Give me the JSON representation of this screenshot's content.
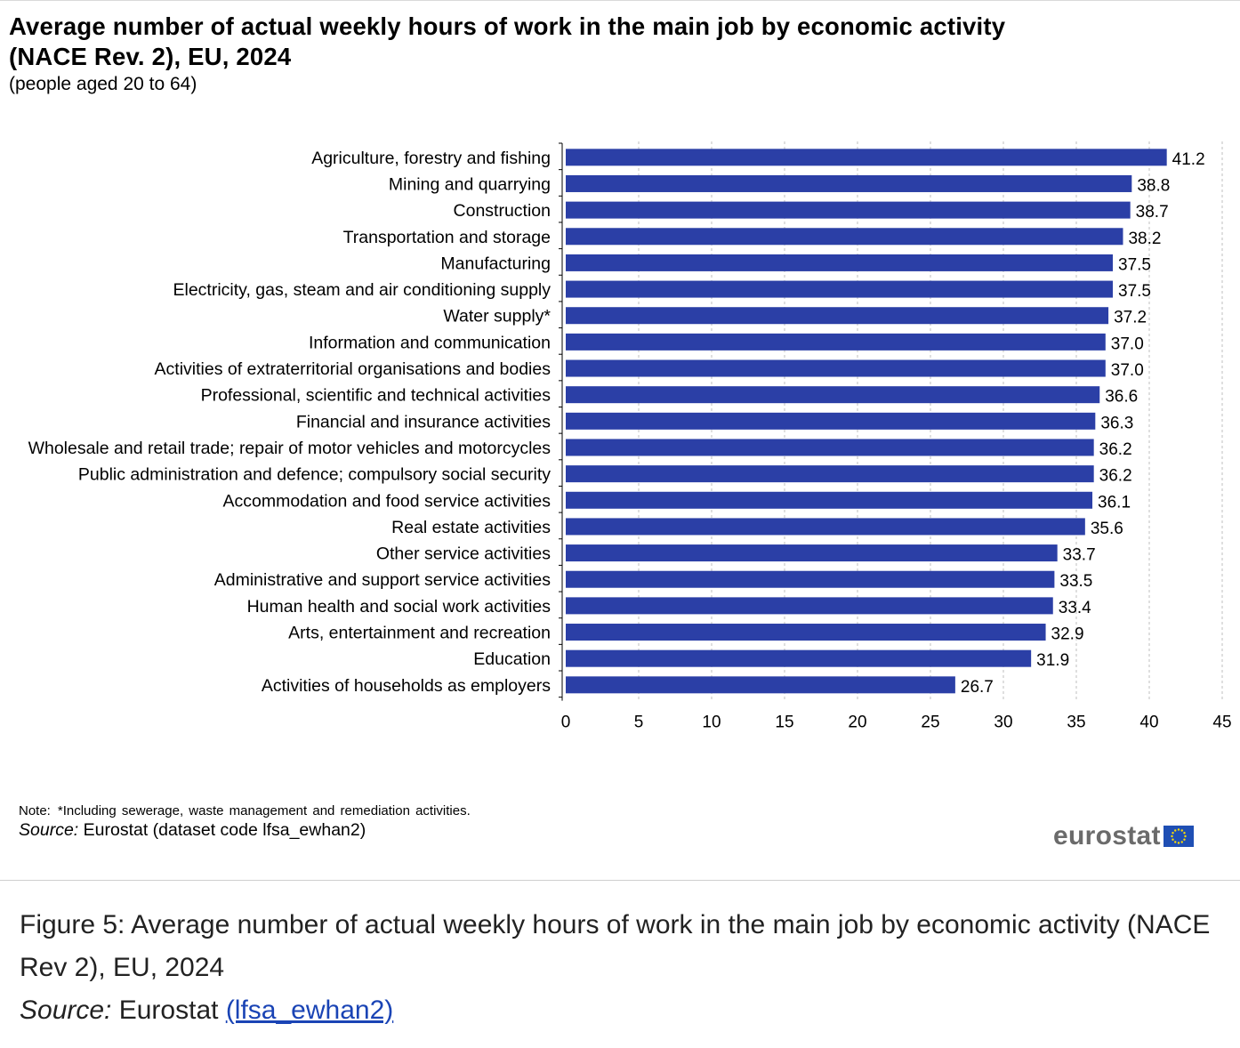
{
  "figure": {
    "title": "Average number of actual weekly hours of work in the main job by economic activity (NACE Rev. 2), EU, 2024",
    "subtitle": "(people aged 20 to 64)",
    "note_label": "Note:",
    "note_text": "*Including sewerage, waste management and remediation activities.",
    "source_label": "Source:",
    "source_text": "Eurostat (dataset code lfsa_ewhan2)",
    "logo_text": "eurostat"
  },
  "caption": {
    "title": "Figure 5: Average number of actual weekly hours of work in the main job by economic activity (NACE Rev 2), EU, 2024",
    "source_label": "Source:",
    "source_text": "Eurostat",
    "link_text": "(lfsa_ewhan2)"
  },
  "colors": {
    "bar": "#2b3fa6",
    "grid": "#bfbfbf",
    "link": "#1a44b5",
    "logo_grey": "#6b6b6b",
    "eu_flag_blue": "#1f4fb4",
    "eu_flag_star": "#ffdd00"
  },
  "chart_data": {
    "type": "bar",
    "orientation": "horizontal",
    "title": "Average number of actual weekly hours of work in the main job by economic activity (NACE Rev. 2), EU, 2024",
    "subtitle": "(people aged 20 to 64)",
    "categories": [
      "Agriculture, forestry and fishing",
      "Mining and quarrying",
      "Construction",
      "Transportation and storage",
      "Manufacturing",
      "Electricity, gas, steam and air conditioning supply",
      "Water supply*",
      "Information and communication",
      "Activities of extraterritorial organisations and bodies",
      "Professional, scientific and technical activities",
      "Financial and insurance activities",
      "Wholesale and retail trade; repair of motor vehicles and motorcycles",
      "Public administration and defence; compulsory social security",
      "Accommodation and food service activities",
      "Real estate activities",
      "Other service activities",
      "Administrative and support service activities",
      "Human health and social work activities",
      "Arts, entertainment and recreation",
      "Education",
      "Activities of households as employers"
    ],
    "values": [
      41.2,
      38.8,
      38.7,
      38.2,
      37.5,
      37.5,
      37.2,
      37.0,
      37.0,
      36.6,
      36.3,
      36.2,
      36.2,
      36.1,
      35.6,
      33.7,
      33.5,
      33.4,
      32.9,
      31.9,
      26.7
    ],
    "value_labels": [
      "41.2",
      "38.8",
      "38.7",
      "38.2",
      "37.5",
      "37.5",
      "37.2",
      "37.0",
      "37.0",
      "36.6",
      "36.3",
      "36.2",
      "36.2",
      "36.1",
      "35.6",
      "33.7",
      "33.5",
      "33.4",
      "32.9",
      "31.9",
      "26.7"
    ],
    "xlim": [
      0,
      45
    ],
    "xticks": [
      0,
      5,
      10,
      15,
      20,
      25,
      30,
      35,
      40,
      45
    ],
    "xlabel": "",
    "ylabel": "",
    "grid": "vertical dashed",
    "legend": "none"
  }
}
